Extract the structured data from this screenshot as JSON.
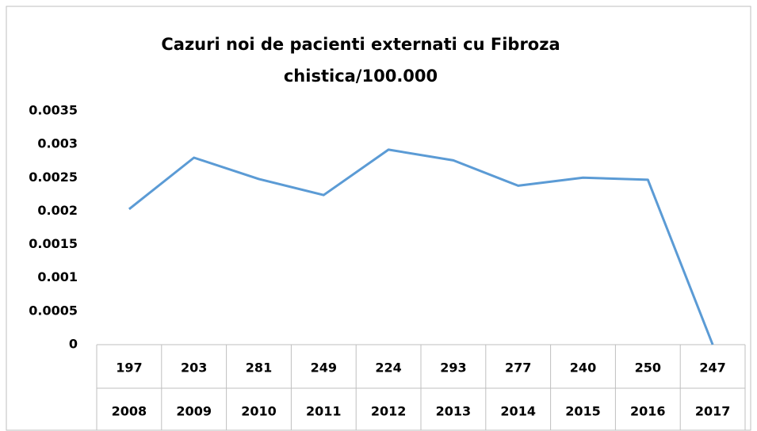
{
  "chart_data": {
    "type": "line",
    "title": [
      "Cazuri noi de pacienti externati cu Fibroza",
      "chistica/100.000"
    ],
    "categories": [
      "2008",
      "2009",
      "2010",
      "2011",
      "2012",
      "2013",
      "2014",
      "2015",
      "2016",
      "2017"
    ],
    "counts": [
      197,
      203,
      281,
      249,
      224,
      293,
      277,
      240,
      250,
      247
    ],
    "series": [
      {
        "color": "#5b9bd5",
        "values": [
          0.00203,
          0.0028,
          0.00248,
          0.00224,
          0.00292,
          0.00276,
          0.00238,
          0.0025,
          0.00247,
          0
        ]
      }
    ],
    "ylim": [
      0,
      0.0035
    ],
    "yticks": [
      0,
      0.0005,
      0.001,
      0.0015,
      0.002,
      0.0025,
      0.003,
      0.0035
    ],
    "grid": false
  }
}
